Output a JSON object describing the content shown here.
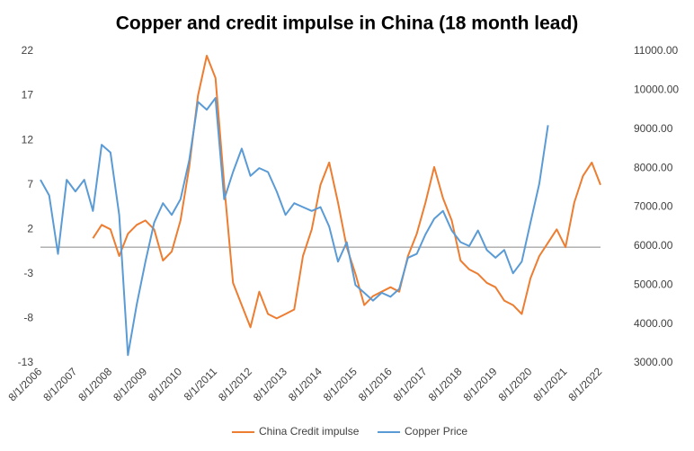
{
  "chart_data": {
    "type": "line",
    "title": "Copper and credit impulse in China (18 month lead)",
    "x": [
      "8/1/2006",
      "11/1/2006",
      "2/1/2007",
      "5/1/2007",
      "8/1/2007",
      "11/1/2007",
      "2/1/2008",
      "5/1/2008",
      "8/1/2008",
      "11/1/2008",
      "2/1/2009",
      "5/1/2009",
      "8/1/2009",
      "11/1/2009",
      "2/1/2010",
      "5/1/2010",
      "8/1/2010",
      "11/1/2010",
      "2/1/2011",
      "5/1/2011",
      "8/1/2011",
      "11/1/2011",
      "2/1/2012",
      "5/1/2012",
      "8/1/2012",
      "11/1/2012",
      "2/1/2013",
      "5/1/2013",
      "8/1/2013",
      "11/1/2013",
      "2/1/2014",
      "5/1/2014",
      "8/1/2014",
      "11/1/2014",
      "2/1/2015",
      "5/1/2015",
      "8/1/2015",
      "11/1/2015",
      "2/1/2016",
      "5/1/2016",
      "8/1/2016",
      "11/1/2016",
      "2/1/2017",
      "5/1/2017",
      "8/1/2017",
      "11/1/2017",
      "2/1/2018",
      "5/1/2018",
      "8/1/2018",
      "11/1/2018",
      "2/1/2019",
      "5/1/2019",
      "8/1/2019",
      "11/1/2019",
      "2/1/2020",
      "5/1/2020",
      "8/1/2020",
      "11/1/2020",
      "2/1/2021",
      "5/1/2021",
      "8/1/2021",
      "11/1/2021",
      "2/1/2022",
      "5/1/2022",
      "8/1/2022"
    ],
    "xticks": [
      "8/1/2006",
      "8/1/2007",
      "8/1/2008",
      "8/1/2009",
      "8/1/2010",
      "8/1/2011",
      "8/1/2012",
      "8/1/2013",
      "8/1/2014",
      "8/1/2015",
      "8/1/2016",
      "8/1/2017",
      "8/1/2018",
      "8/1/2019",
      "8/1/2020",
      "8/1/2021",
      "8/1/2022"
    ],
    "ylim": [
      -13,
      22
    ],
    "yticks": [
      22,
      17,
      12,
      7,
      2,
      -3,
      -8,
      -13
    ],
    "y2lim": [
      3000,
      11000
    ],
    "y2ticks": [
      {
        "value": 11000,
        "label": "11000.00"
      },
      {
        "value": 10000,
        "label": "10000.00"
      },
      {
        "value": 9000,
        "label": "9000.00"
      },
      {
        "value": 8000,
        "label": "8000.00"
      },
      {
        "value": 7000,
        "label": "7000.00"
      },
      {
        "value": 6000,
        "label": "6000.00"
      },
      {
        "value": 5000,
        "label": "5000.00"
      },
      {
        "value": 4000,
        "label": "4000.00"
      },
      {
        "value": 3000,
        "label": "3000.00"
      }
    ],
    "legend": "bottom",
    "series": [
      {
        "name": "China Credit impulse",
        "color": "#ED7D31",
        "values": [
          null,
          null,
          null,
          null,
          null,
          null,
          1,
          2.5,
          2,
          -1,
          1.5,
          2.5,
          3,
          2,
          -1.5,
          -0.5,
          3,
          9,
          17,
          21.5,
          19,
          7,
          -4,
          -6.5,
          -9,
          -5,
          -7.5,
          -8,
          -7.5,
          -7,
          -1,
          2,
          7,
          9.5,
          5,
          0,
          -3,
          -6.5,
          -5.5,
          -5,
          -4.5,
          -5,
          -1,
          1.5,
          5,
          9,
          5.5,
          3,
          -1.5,
          -2.5,
          -3,
          -4,
          -4.5,
          -6,
          -6.5,
          -7.5,
          -3.5,
          -1,
          0.5,
          2,
          0,
          5,
          8,
          9.5,
          7
        ]
      },
      {
        "name": "Copper Price",
        "color": "#5B9BD5",
        "axis": "y2",
        "values": [
          7700,
          7300,
          5800,
          7700,
          7400,
          7700,
          6900,
          8600,
          8400,
          6800,
          3200,
          4500,
          5600,
          6600,
          7100,
          6800,
          7200,
          8200,
          9700,
          9500,
          9800,
          7200,
          7900,
          8500,
          7800,
          8000,
          7900,
          7400,
          6800,
          7100,
          7000,
          6900,
          7000,
          6500,
          5600,
          6100,
          5000,
          4800,
          4600,
          4800,
          4700,
          4900,
          5700,
          5800,
          6300,
          6700,
          6900,
          6400,
          6100,
          6000,
          6400,
          5900,
          5700,
          5900,
          5300,
          5600,
          6600,
          7600,
          9100,
          null,
          null,
          null,
          null,
          null,
          null
        ]
      }
    ]
  }
}
